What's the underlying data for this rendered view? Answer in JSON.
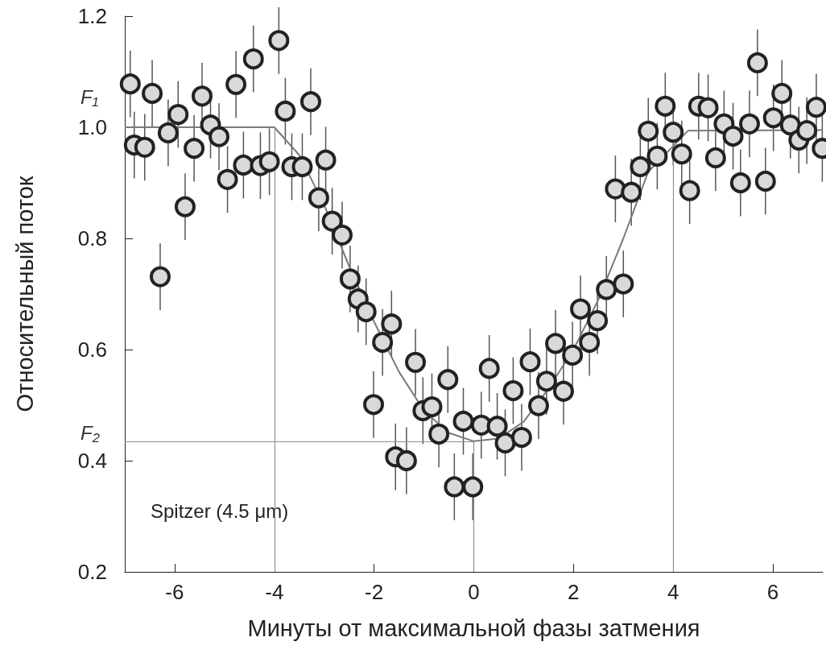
{
  "chart_data": {
    "type": "scatter",
    "xlabel": "Минуты от максимальной фазы затмения",
    "ylabel": "Относительный поток",
    "xlim": [
      -7,
      7
    ],
    "xticks": [
      -6,
      -4,
      -2,
      0,
      2,
      4,
      6
    ],
    "ylim": [
      0.2,
      1.2
    ],
    "yticks": [
      {
        "value": 0.2,
        "label": "0.2"
      },
      {
        "value": 0.4,
        "label": "0.4"
      },
      {
        "value": 0.6,
        "label": "0.6"
      },
      {
        "value": 0.8,
        "label": "0.8"
      },
      {
        "value": 1,
        "label": "1.0"
      },
      {
        "value": 1.2,
        "label": "1.2"
      }
    ],
    "grid": false,
    "marker": "circle",
    "annotations": [
      "Spitzer (4.5 μm)",
      {
        "text": "F₁",
        "x": -7,
        "y": 1.0
      },
      {
        "text": "F₂",
        "x": -7,
        "y": 0.435
      }
    ],
    "ref_lines": [
      {
        "axis": "x",
        "value": -4,
        "color": "#909090"
      },
      {
        "axis": "x",
        "value": 4,
        "color": "#909090"
      },
      {
        "axis": "x",
        "value": 0,
        "color": "#909090"
      },
      {
        "axis": "y",
        "value": 0.435,
        "color": "#909090"
      }
    ],
    "series": [
      {
        "color": "#d9d9d9",
        "x": [
          -6.89,
          -6.81,
          -6.6,
          -6.45,
          -6.29,
          -6.13,
          -5.93,
          -5.79,
          -5.61,
          -5.45,
          -5.28,
          -5.11,
          -4.94,
          -4.77,
          -4.62,
          -4.42,
          -4.28,
          -4.1,
          -3.91,
          -3.78,
          -3.65,
          -3.44,
          -3.27,
          -3.11,
          -2.97,
          -2.84,
          -2.64,
          -2.48,
          -2.32,
          -2.16,
          -2.01,
          -1.83,
          -1.65,
          -1.57,
          -1.35,
          -1.17,
          -1.02,
          -0.84,
          -0.7,
          -0.52,
          -0.39,
          -0.21,
          -0.02,
          0.15,
          0.31,
          0.47,
          0.63,
          0.79,
          0.96,
          1.13,
          1.3,
          1.46,
          1.64,
          1.8,
          1.98,
          2.14,
          2.32,
          2.48,
          2.66,
          2.84,
          3.0,
          3.16,
          3.34,
          3.5,
          3.68,
          3.84,
          4.0,
          4.17,
          4.33,
          4.51,
          4.7,
          4.85,
          5.02,
          5.2,
          5.35,
          5.53,
          5.69,
          5.85,
          6.01,
          6.18,
          6.35,
          6.52,
          6.68,
          6.87,
          6.99
        ],
        "values": [
          1.078,
          0.968,
          0.964,
          1.061,
          0.731,
          0.99,
          1.023,
          0.857,
          0.962,
          1.056,
          1.004,
          0.983,
          0.906,
          1.077,
          0.932,
          1.123,
          0.931,
          0.938,
          1.156,
          1.029,
          0.929,
          0.929,
          1.046,
          0.873,
          0.941,
          0.831,
          0.806,
          0.727,
          0.691,
          0.668,
          0.501,
          0.613,
          0.646,
          0.407,
          0.4,
          0.577,
          0.49,
          0.497,
          0.448,
          0.546,
          0.353,
          0.471,
          0.353,
          0.464,
          0.566,
          0.462,
          0.432,
          0.526,
          0.442,
          0.578,
          0.499,
          0.543,
          0.611,
          0.525,
          0.59,
          0.673,
          0.613,
          0.652,
          0.708,
          0.889,
          0.718,
          0.883,
          0.929,
          0.993,
          0.948,
          1.038,
          0.991,
          0.952,
          0.886,
          1.038,
          1.035,
          0.945,
          1.006,
          0.984,
          0.9,
          1.006,
          1.116,
          0.903,
          1.017,
          1.061,
          1.004,
          0.977,
          0.994,
          1.036,
          0.962
        ],
        "errors": [
          0.06,
          0.06,
          0.06,
          0.06,
          0.06,
          0.06,
          0.06,
          0.06,
          0.06,
          0.06,
          0.06,
          0.06,
          0.06,
          0.06,
          0.06,
          0.06,
          0.06,
          0.06,
          0.06,
          0.06,
          0.06,
          0.06,
          0.06,
          0.06,
          0.06,
          0.06,
          0.06,
          0.06,
          0.06,
          0.06,
          0.06,
          0.06,
          0.06,
          0.06,
          0.06,
          0.06,
          0.06,
          0.06,
          0.06,
          0.06,
          0.06,
          0.06,
          0.06,
          0.06,
          0.06,
          0.06,
          0.06,
          0.06,
          0.06,
          0.06,
          0.06,
          0.06,
          0.06,
          0.06,
          0.06,
          0.06,
          0.06,
          0.06,
          0.06,
          0.06,
          0.06,
          0.06,
          0.06,
          0.06,
          0.06,
          0.06,
          0.06,
          0.06,
          0.06,
          0.06,
          0.06,
          0.06,
          0.06,
          0.06,
          0.06,
          0.06,
          0.06,
          0.06,
          0.06,
          0.06,
          0.06,
          0.06,
          0.06,
          0.06,
          0.06
        ]
      },
      {
        "type": "line",
        "color": "#7a7a7a",
        "marker": "none",
        "x": [
          -7,
          -4,
          -3.5,
          -3,
          -2.5,
          -2,
          -1.5,
          -1,
          -0.5,
          0,
          0.5,
          1,
          1.5,
          2,
          2.5,
          3,
          3.5,
          4.3,
          7
        ],
        "values": [
          1.0,
          1.0,
          0.95,
          0.86,
          0.75,
          0.65,
          0.56,
          0.49,
          0.45,
          0.435,
          0.44,
          0.47,
          0.53,
          0.6,
          0.69,
          0.8,
          0.92,
          0.994,
          0.995
        ]
      }
    ]
  }
}
